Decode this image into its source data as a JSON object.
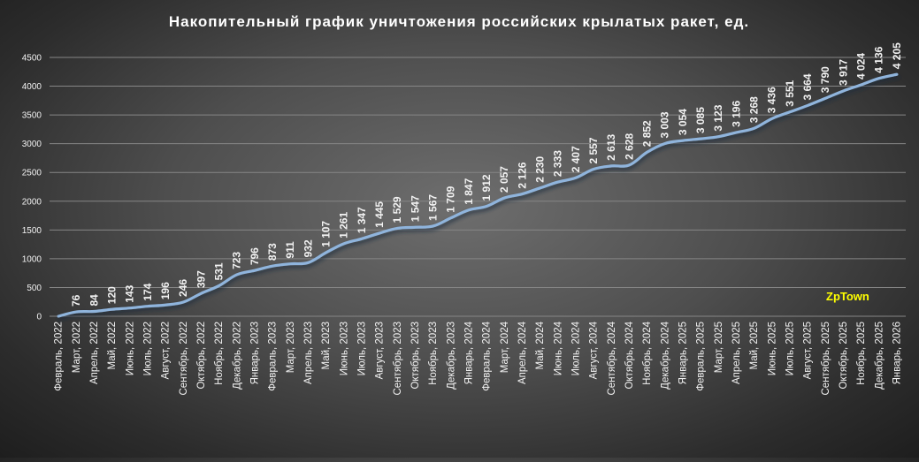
{
  "chart_data": {
    "type": "line",
    "title": "Накопительный график уничтожения российских крылатых ракет, ед.",
    "xlabel": "",
    "ylabel": "",
    "ylim": [
      0,
      4500
    ],
    "yticks": [
      "0",
      "500",
      "1000",
      "1500",
      "2000",
      "2500",
      "3000",
      "3500",
      "4000",
      "4500"
    ],
    "grid": true,
    "watermark": "ZpTown",
    "categories": [
      "Февраль, 2022",
      "Март, 2022",
      "Апрель, 2022",
      "Май, 2022",
      "Июнь, 2022",
      "Июль, 2022",
      "Август, 2022",
      "Сентябрь, 2022",
      "Октябрь, 2022",
      "Ноябрь, 2022",
      "Декабрь, 2022",
      "Январь, 2023",
      "Февраль, 2023",
      "Март, 2023",
      "Апрель, 2023",
      "Май, 2023",
      "Июнь, 2023",
      "Июль, 2023",
      "Август, 2023",
      "Сентябрь, 2023",
      "Октябрь, 2023",
      "Ноябрь, 2023",
      "Декабрь, 2023",
      "Январь, 2024",
      "Февраль, 2024",
      "Март, 2024",
      "Апрель, 2024",
      "Май, 2024",
      "Июнь, 2024",
      "Июль, 2024",
      "Август, 2024",
      "Сентябрь, 2024",
      "Октябрь, 2024",
      "Ноябрь, 2024",
      "Декабрь, 2024",
      "Январь, 2025",
      "Февраль, 2025",
      "Март, 2025",
      "Апрель, 2025",
      "Май, 2025",
      "Июнь, 2025",
      "Июль, 2025",
      "Август, 2025",
      "Сентябрь, 2025",
      "Октябрь, 2025",
      "Ноябрь, 2025",
      "Декабрь, 2025",
      "Январь, 2026"
    ],
    "values": [
      0,
      76,
      84,
      120,
      143,
      174,
      196,
      246,
      397,
      531,
      723,
      796,
      873,
      911,
      932,
      1107,
      1261,
      1347,
      1445,
      1529,
      1547,
      1567,
      1709,
      1847,
      1912,
      2057,
      2126,
      2230,
      2333,
      2407,
      2557,
      2613,
      2628,
      2852,
      3003,
      3054,
      3085,
      3123,
      3196,
      3268,
      3436,
      3551,
      3664,
      3790,
      3917,
      4024,
      4136,
      4205
    ],
    "data_labels": [
      "",
      "76",
      "84",
      "120",
      "143",
      "174",
      "196",
      "246",
      "397",
      "531",
      "723",
      "796",
      "873",
      "911",
      "932",
      "1 107",
      "1 261",
      "1 347",
      "1 445",
      "1 529",
      "1 547",
      "1 567",
      "1 709",
      "1 847",
      "1 912",
      "2 057",
      "2 126",
      "2 230",
      "2 333",
      "2 407",
      "2 557",
      "2 613",
      "2 628",
      "2 852",
      "3 003",
      "3 054",
      "3 085",
      "3 123",
      "3 196",
      "3 268",
      "3 436",
      "3 551",
      "3 664",
      "3 790",
      "3 917",
      "4 024",
      "4 136",
      "4 205"
    ],
    "colors": {
      "line": "#8fb4dc",
      "line_shadow": "#24364c",
      "label": "#f2f2f2",
      "axis_text": "#f2f2f2",
      "grid": "#868686",
      "title": "#ffffff",
      "watermark": "#ffff00"
    }
  }
}
